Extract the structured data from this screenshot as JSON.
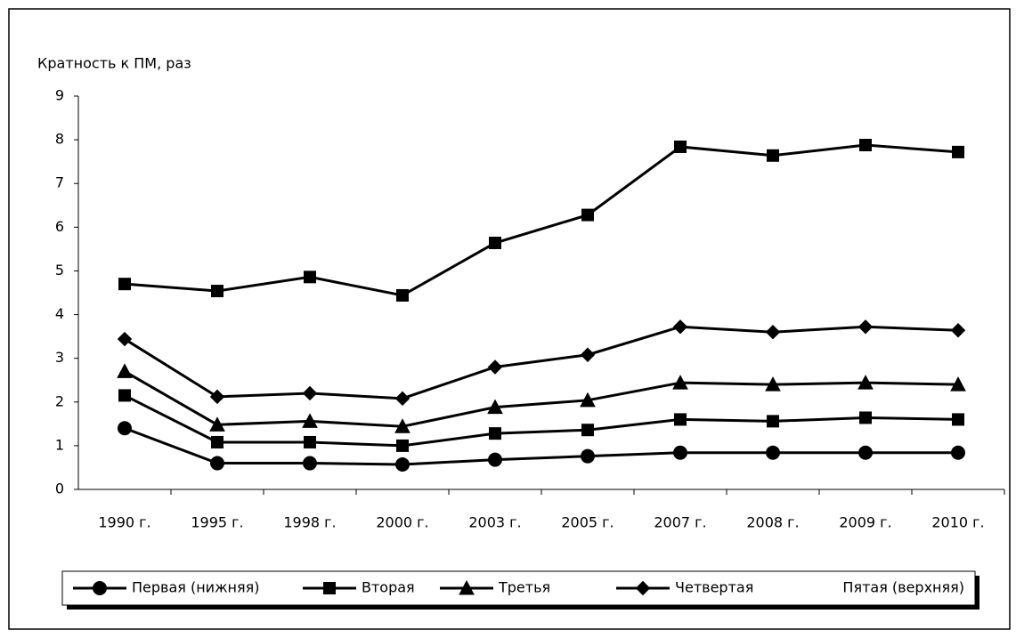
{
  "chart_data": {
    "type": "line",
    "y_label": "Кратность к ПМ, раз",
    "categories": [
      "1990 г.",
      "1995 г.",
      "1998 г.",
      "2000 г.",
      "2003 г.",
      "2005 г.",
      "2007 г.",
      "2008 г.",
      "2009 г.",
      "2010 г."
    ],
    "ylim": [
      0,
      9
    ],
    "yticks": [
      0,
      1,
      2,
      3,
      4,
      5,
      6,
      7,
      8,
      9
    ],
    "series": [
      {
        "name": "Первая (нижняя)",
        "color": "#000000",
        "marker": "circle",
        "values": [
          1.4,
          0.6,
          0.6,
          0.57,
          0.68,
          0.76,
          0.84,
          0.84,
          0.84,
          0.84
        ]
      },
      {
        "name": "Вторая",
        "color": "#000000",
        "marker": "square",
        "values": [
          2.15,
          1.08,
          1.08,
          1.0,
          1.28,
          1.36,
          1.6,
          1.56,
          1.64,
          1.6
        ]
      },
      {
        "name": "Третья",
        "color": "#000000",
        "marker": "triangle",
        "values": [
          2.7,
          1.48,
          1.56,
          1.44,
          1.88,
          2.04,
          2.44,
          2.4,
          2.44,
          2.4
        ]
      },
      {
        "name": "Четвертая",
        "color": "#000000",
        "marker": "diamond",
        "values": [
          3.44,
          2.12,
          2.2,
          2.08,
          2.8,
          3.08,
          3.72,
          3.6,
          3.72,
          3.64
        ]
      },
      {
        "name": "Пятая (верхняя)",
        "color": "#000000",
        "marker": "square",
        "values": [
          4.7,
          4.54,
          4.86,
          4.44,
          5.64,
          6.28,
          7.84,
          7.64,
          7.88,
          7.72
        ]
      }
    ],
    "legend": "bottom"
  }
}
